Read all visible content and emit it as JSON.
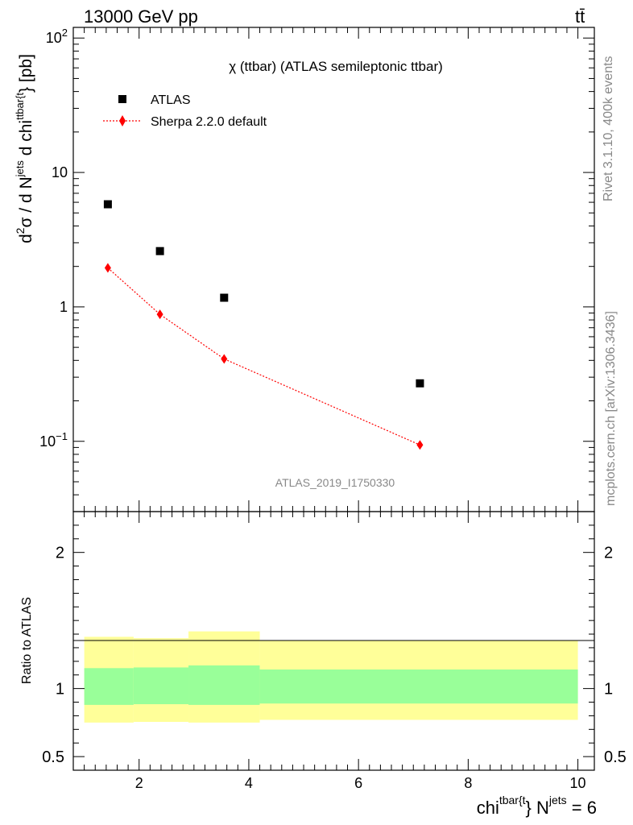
{
  "header": {
    "left": "13000 GeV pp",
    "right": "tt̄"
  },
  "side_text": {
    "rivet": "Rivet 3.1.10,  400k events",
    "site": "mcplots.cern.ch [arXiv:1306.3436]"
  },
  "chart_data": [
    {
      "type": "scatter",
      "title": "χ (ttbar) (ATLAS semileptonic ttbar)",
      "watermark": "ATLAS_2019_I1750330",
      "ylabel": {
        "main": "d",
        "sup2": "2",
        "sigma": "σ /  d N",
        "sup_jets": "jets",
        "mid": " d chi",
        "sup_tt": "ttbar{t",
        "end": "} [pb]"
      },
      "yscale": "log",
      "ylim": [
        0.03,
        120
      ],
      "xlim": [
        0.8,
        10.3
      ],
      "yticks": [
        {
          "value": 0.1,
          "base": "10",
          "exp": "−1"
        },
        {
          "value": 1,
          "label": "1"
        },
        {
          "value": 10,
          "label": "10"
        },
        {
          "value": 100,
          "base": "10",
          "exp": "2"
        }
      ],
      "legend_position": "top-left",
      "series": [
        {
          "name": "ATLAS",
          "marker": "square",
          "color": "#000000",
          "x": [
            1.43,
            2.38,
            3.55,
            7.12
          ],
          "y": [
            5.8,
            2.6,
            1.17,
            0.27
          ]
        },
        {
          "name": "Sherpa 2.2.0 default",
          "marker": "diamond",
          "line": "dotted",
          "color": "#ff0000",
          "x": [
            1.43,
            2.38,
            3.55,
            7.12
          ],
          "y": [
            1.95,
            0.88,
            0.41,
            0.094
          ]
        }
      ]
    },
    {
      "type": "area",
      "ylabel": "Ratio to ATLAS",
      "xlabel": {
        "main": "chi",
        "sup_tt": "tbar{t",
        "mid": "} N",
        "sup_jets": "jets",
        "end": " = 6"
      },
      "ylim": [
        0.4,
        2.3
      ],
      "xlim": [
        0.8,
        10.3
      ],
      "xticks": [
        2,
        4,
        6,
        8,
        10
      ],
      "yticks": [
        0.5,
        1,
        2
      ],
      "bins": [
        {
          "x0": 1.0,
          "x1": 1.9,
          "inner": [
            0.88,
            1.15
          ],
          "outer": [
            0.75,
            1.38
          ]
        },
        {
          "x0": 1.9,
          "x1": 2.9,
          "inner": [
            0.885,
            1.155
          ],
          "outer": [
            0.755,
            1.37
          ]
        },
        {
          "x0": 2.9,
          "x1": 4.2,
          "inner": [
            0.88,
            1.17
          ],
          "outer": [
            0.75,
            1.42
          ]
        },
        {
          "x0": 4.2,
          "x1": 10.0,
          "inner": [
            0.89,
            1.14
          ],
          "outer": [
            0.77,
            1.35
          ]
        }
      ],
      "colors": {
        "inner": "#99ff99",
        "outer": "#ffff99"
      }
    }
  ]
}
